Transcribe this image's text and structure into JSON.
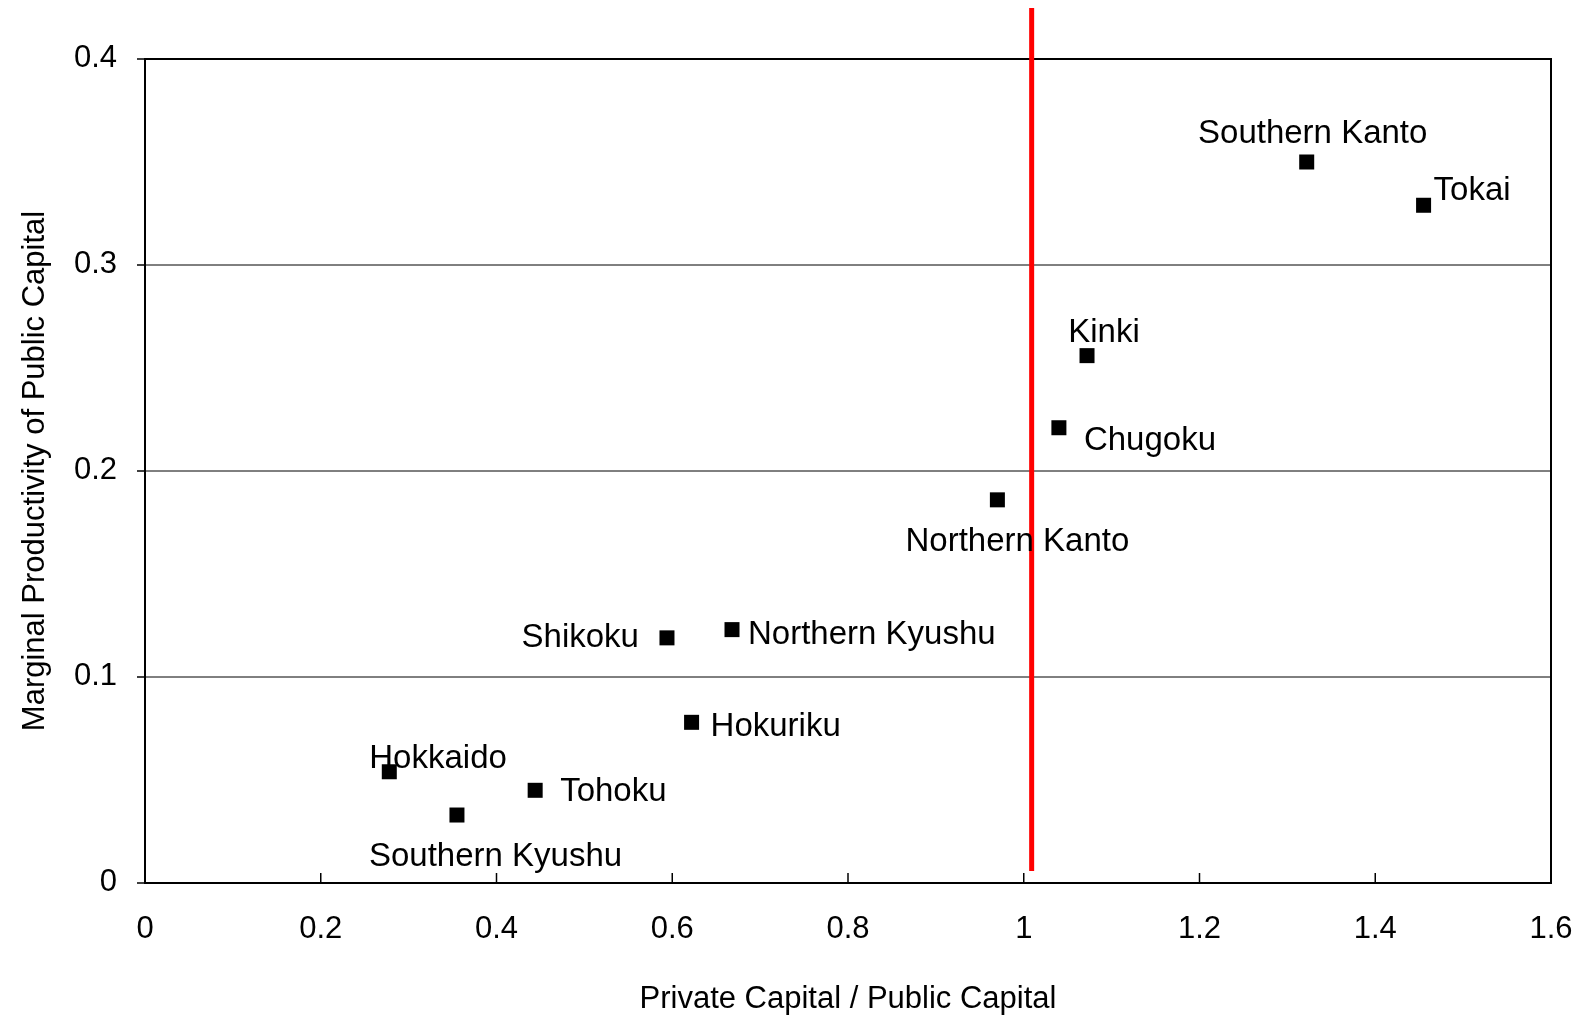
{
  "chart_data": {
    "type": "scatter",
    "xlabel": "Private Capital / Public Capital",
    "ylabel": "Marginal Productivity of Public Capital",
    "xlim": [
      0,
      1.6
    ],
    "xticks": [
      0,
      0.2,
      0.4,
      0.6,
      0.8,
      1,
      1.2,
      1.4,
      1.6
    ],
    "ylim": [
      0,
      0.4
    ],
    "yticks": [
      0,
      0.1,
      0.2,
      0.3,
      0.4
    ],
    "grid": "y",
    "marker": "square",
    "ref_lines": [
      {
        "axis": "x",
        "value": 1.009,
        "color": "#ff0000"
      }
    ],
    "series": [
      {
        "name": "Southern Kanto",
        "color": "#000000",
        "x": [
          1.322
        ],
        "values": [
          0.35
        ]
      },
      {
        "name": "Tokai",
        "color": "#000000",
        "x": [
          1.455
        ],
        "values": [
          0.329
        ]
      },
      {
        "name": "Kinki",
        "color": "#000000",
        "x": [
          1.072
        ],
        "values": [
          0.256
        ]
      },
      {
        "name": "Chugoku",
        "color": "#000000",
        "x": [
          1.04
        ],
        "values": [
          0.221
        ]
      },
      {
        "name": "Northern Kanto",
        "color": "#000000",
        "x": [
          0.97
        ],
        "values": [
          0.186
        ]
      },
      {
        "name": "Shikoku",
        "color": "#000000",
        "x": [
          0.594
        ],
        "values": [
          0.119
        ]
      },
      {
        "name": "Northern Kyushu",
        "color": "#000000",
        "x": [
          0.668
        ],
        "values": [
          0.123
        ]
      },
      {
        "name": "Hokuriku",
        "color": "#000000",
        "x": [
          0.622
        ],
        "values": [
          0.078
        ]
      },
      {
        "name": "Hokkaido",
        "color": "#000000",
        "x": [
          0.278
        ],
        "values": [
          0.054
        ]
      },
      {
        "name": "Tohoku",
        "color": "#000000",
        "x": [
          0.444
        ],
        "values": [
          0.045
        ]
      },
      {
        "name": "Southern Kyushu",
        "color": "#000000",
        "x": [
          0.355
        ],
        "values": [
          0.033
        ]
      }
    ]
  }
}
